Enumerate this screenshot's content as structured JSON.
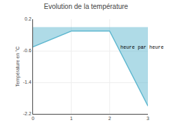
{
  "chart_data": {
    "type": "area",
    "title": "Evolution de la température",
    "y_label": "Température en °C",
    "annotations": [
      {
        "text": "heure par heure",
        "x": 2.25,
        "y": -0.52
      }
    ],
    "x": [
      0,
      1,
      2,
      3
    ],
    "values": [
      -0.5,
      -0.1,
      -0.1,
      -2.0
    ],
    "color": "#60b8d0",
    "xlim": [
      0,
      3
    ],
    "xticks": [
      0,
      1,
      2,
      3
    ],
    "ylim": [
      -2.2,
      0.2
    ],
    "yticks": [
      0.2,
      -0.6,
      -1.4,
      -2.2
    ],
    "grid": true
  }
}
